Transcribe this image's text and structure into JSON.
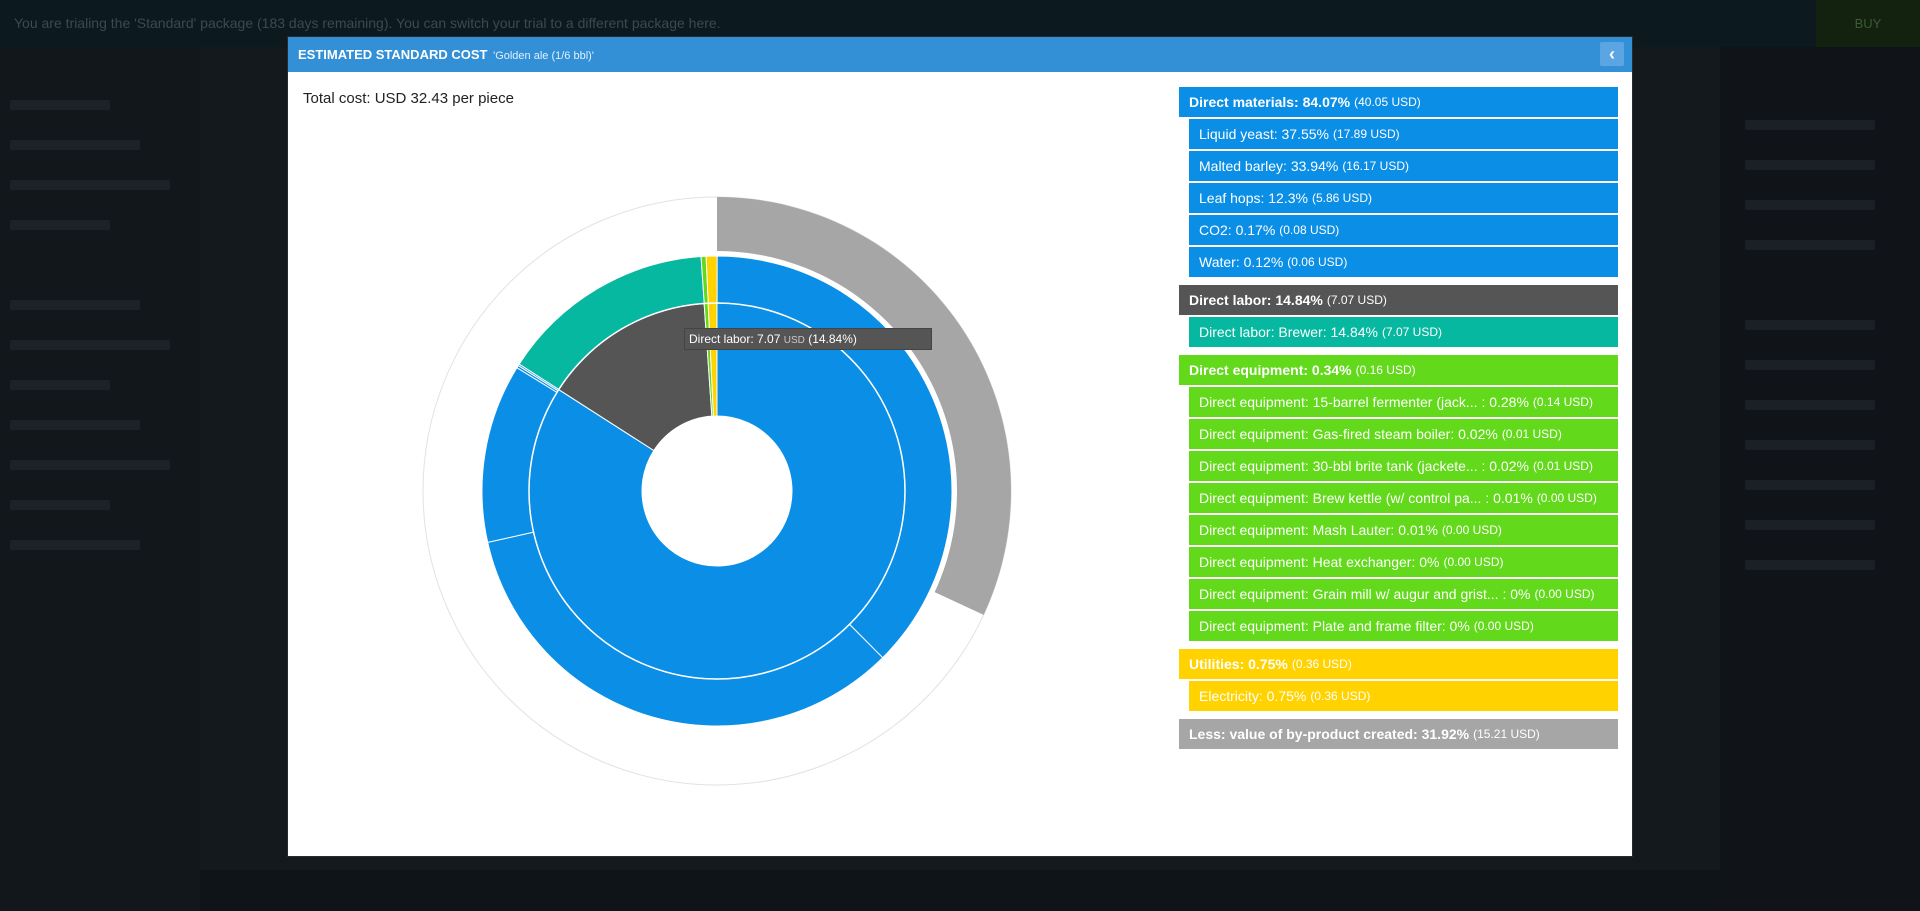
{
  "banner": {
    "message": "You are trialing the 'Standard' package (183 days remaining). You can switch your trial to a different package here.",
    "buy_label": "BUY"
  },
  "modal": {
    "title": "ESTIMATED STANDARD COST",
    "subtitle": "'Golden ale (1/6 bbl)'",
    "close_icon": "chevron-left-icon",
    "total_cost": "Total cost: USD 32.43 per piece"
  },
  "tooltip": {
    "label": "Direct labor: 7.07",
    "unit": "USD",
    "pct": "(14.84%)"
  },
  "colors": {
    "materials": "#0a8ee6",
    "labor": "#555555",
    "labor_item": "#06b89f",
    "equipment": "#62d91a",
    "utilities": "#ffd200",
    "byproduct": "#a6a6a6"
  },
  "legend": [
    {
      "head": "Direct materials: 84.07%",
      "amount": "(40.05 USD)",
      "color": "#0a8ee6",
      "items": [
        {
          "label": "Liquid yeast: 37.55%",
          "amount": "(17.89 USD)"
        },
        {
          "label": "Malted barley: 33.94%",
          "amount": "(16.17 USD)"
        },
        {
          "label": "Leaf hops: 12.3%",
          "amount": "(5.86 USD)"
        },
        {
          "label": "CO2: 0.17%",
          "amount": "(0.08 USD)"
        },
        {
          "label": "Water: 0.12%",
          "amount": "(0.06 USD)"
        }
      ]
    },
    {
      "head": "Direct labor: 14.84%",
      "amount": "(7.07 USD)",
      "color": "#555555",
      "item_color": "#06b89f",
      "items": [
        {
          "label": "Direct labor: Brewer: 14.84%",
          "amount": "(7.07 USD)"
        }
      ]
    },
    {
      "head": "Direct equipment: 0.34%",
      "amount": "(0.16 USD)",
      "color": "#62d91a",
      "items": [
        {
          "label": "Direct equipment: 15-barrel fermenter (jack... : 0.28%",
          "amount": "(0.14 USD)"
        },
        {
          "label": "Direct equipment: Gas-fired steam boiler: 0.02%",
          "amount": "(0.01 USD)"
        },
        {
          "label": "Direct equipment: 30-bbl brite tank (jackete... : 0.02%",
          "amount": "(0.01 USD)"
        },
        {
          "label": "Direct equipment: Brew kettle (w/ control pa... : 0.01%",
          "amount": "(0.00 USD)"
        },
        {
          "label": "Direct equipment: Mash Lauter: 0.01%",
          "amount": "(0.00 USD)"
        },
        {
          "label": "Direct equipment: Heat exchanger: 0%",
          "amount": "(0.00 USD)"
        },
        {
          "label": "Direct equipment: Grain mill w/ augur and grist... : 0%",
          "amount": "(0.00 USD)"
        },
        {
          "label": "Direct equipment: Plate and frame filter: 0%",
          "amount": "(0.00 USD)"
        }
      ]
    },
    {
      "head": "Utilities: 0.75%",
      "amount": "(0.36 USD)",
      "color": "#ffd200",
      "items": [
        {
          "label": "Electricity: 0.75%",
          "amount": "(0.36 USD)"
        }
      ]
    },
    {
      "head": "Less: value of by-product created: 31.92%",
      "amount": "(15.21 USD)",
      "color": "#a6a6a6",
      "items": []
    }
  ],
  "chart_data": {
    "type": "pie",
    "rings": [
      {
        "ring": "inner",
        "slices": [
          {
            "name": "Direct materials",
            "value": 84.07,
            "color": "#0a8ee6"
          },
          {
            "name": "Direct labor",
            "value": 14.84,
            "color": "#555555"
          },
          {
            "name": "Direct equipment",
            "value": 0.34,
            "color": "#62d91a"
          },
          {
            "name": "Utilities",
            "value": 0.75,
            "color": "#ffd200"
          }
        ]
      },
      {
        "ring": "middle",
        "slices": [
          {
            "name": "Liquid yeast",
            "value": 37.55,
            "color": "#0a8ee6"
          },
          {
            "name": "Malted barley",
            "value": 33.94,
            "color": "#0a8ee6"
          },
          {
            "name": "Leaf hops",
            "value": 12.3,
            "color": "#0a8ee6"
          },
          {
            "name": "CO2",
            "value": 0.17,
            "color": "#0a8ee6"
          },
          {
            "name": "Water",
            "value": 0.12,
            "color": "#0a8ee6"
          },
          {
            "name": "Direct labor: Brewer",
            "value": 14.84,
            "color": "#06b89f"
          },
          {
            "name": "Direct equipment",
            "value": 0.34,
            "color": "#62d91a"
          },
          {
            "name": "Electricity",
            "value": 0.75,
            "color": "#ffd200"
          }
        ]
      },
      {
        "ring": "outer",
        "slices": [
          {
            "name": "Less: value of by-product created",
            "value": 31.92,
            "color": "#a6a6a6"
          }
        ]
      }
    ]
  }
}
